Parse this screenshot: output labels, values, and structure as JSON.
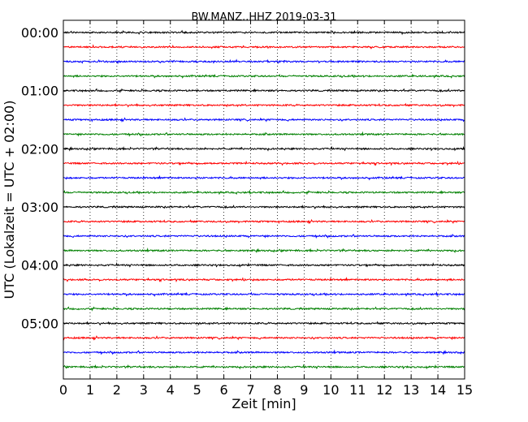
{
  "chart_data": {
    "type": "line",
    "title": "BW.MANZ..HHZ 2019-03-31",
    "xlabel": "Zeit  [min]",
    "ylabel": "UTC (Lokalzeit = UTC + 02:00)",
    "xlim": [
      0,
      15
    ],
    "xticks": [
      "0",
      "1",
      "2",
      "3",
      "4",
      "5",
      "6",
      "7",
      "8",
      "9",
      "10",
      "11",
      "12",
      "13",
      "14",
      "15"
    ],
    "ytick_labels": [
      "00:00",
      "01:00",
      "02:00",
      "03:00",
      "04:00",
      "05:00"
    ],
    "trace_count": 24,
    "trace_interval_minutes": 15,
    "colors": [
      "#000000",
      "#ff0000",
      "#0000ff",
      "#008000"
    ],
    "grid": "vertical-dotted"
  }
}
